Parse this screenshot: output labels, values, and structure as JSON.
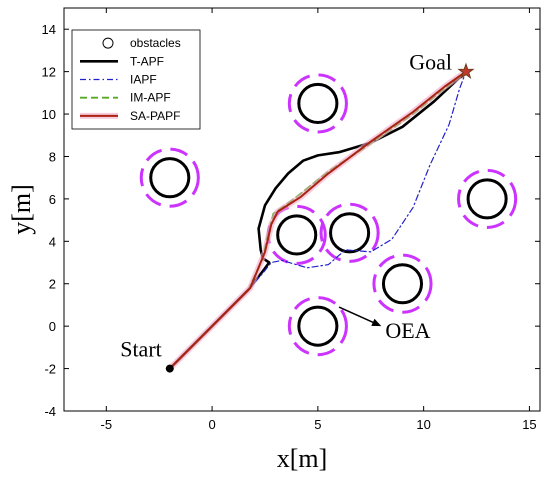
{
  "chart_data": {
    "type": "line",
    "xlabel": "x[m]",
    "ylabel": "y[m]",
    "xlim": [
      -7,
      15.5
    ],
    "ylim": [
      -4,
      15
    ],
    "xticks": [
      -5,
      0,
      5,
      10,
      15
    ],
    "yticks": [
      -4,
      -2,
      0,
      2,
      4,
      6,
      8,
      10,
      12,
      14
    ],
    "grid": false,
    "legend_position": "top-left",
    "start": {
      "label": "Start",
      "x": -2,
      "y": -2
    },
    "goal": {
      "label": "Goal",
      "x": 12,
      "y": 12
    },
    "annotation": {
      "label": "OEA",
      "from": [
        6.0,
        0.9
      ],
      "to": [
        8.0,
        0.0
      ]
    },
    "obstacles": {
      "legend": "obstacles",
      "radius": 0.9,
      "oea_radius": 1.35,
      "oea_color": "#cc33ff",
      "centers": [
        [
          5,
          10.5
        ],
        [
          -2,
          7
        ],
        [
          4,
          4.3
        ],
        [
          6.5,
          4.4
        ],
        [
          9,
          2
        ],
        [
          13,
          6
        ],
        [
          5,
          0
        ]
      ]
    },
    "series": [
      {
        "name": "T-APF",
        "color": "#000000",
        "style": "solid",
        "points": [
          [
            -2,
            -2
          ],
          [
            1.7,
            1.7
          ],
          [
            2.4,
            2.6
          ],
          [
            2.7,
            3.0
          ],
          [
            2.4,
            3.2
          ],
          [
            2.3,
            3.6
          ],
          [
            2.2,
            4.6
          ],
          [
            2.5,
            5.7
          ],
          [
            3.0,
            6.5
          ],
          [
            3.6,
            7.2
          ],
          [
            4.3,
            7.8
          ],
          [
            5.0,
            8.05
          ],
          [
            6.0,
            8.2
          ],
          [
            7.5,
            8.65
          ],
          [
            9.0,
            9.4
          ],
          [
            10.5,
            10.6
          ],
          [
            12,
            12
          ]
        ]
      },
      {
        "name": "IAPF",
        "color": "#2222cc",
        "style": "dashdot",
        "points": [
          [
            -2,
            -2
          ],
          [
            1.7,
            1.7
          ],
          [
            2.4,
            2.5
          ],
          [
            2.8,
            3.0
          ],
          [
            3.3,
            3.1
          ],
          [
            4.5,
            2.75
          ],
          [
            5.5,
            2.9
          ],
          [
            6.3,
            3.6
          ],
          [
            7.5,
            3.5
          ],
          [
            8.5,
            4.1
          ],
          [
            9.5,
            5.6
          ],
          [
            10.3,
            7.6
          ],
          [
            11.2,
            9.5
          ],
          [
            11.7,
            11.2
          ],
          [
            12,
            12
          ]
        ]
      },
      {
        "name": "IM-APF",
        "color": "#55aa22",
        "style": "dashed",
        "points": [
          [
            -2,
            -2
          ],
          [
            1.7,
            1.7
          ],
          [
            2.4,
            3.2
          ],
          [
            2.6,
            4.2
          ],
          [
            2.9,
            5.3
          ],
          [
            4.0,
            6.1
          ],
          [
            5.5,
            7.3
          ],
          [
            7.5,
            8.6
          ],
          [
            9.5,
            10.0
          ],
          [
            11,
            11.2
          ],
          [
            12,
            12
          ]
        ]
      },
      {
        "name": "SA-PAPF",
        "color": "#aa2211",
        "style": "solid",
        "points": [
          [
            -2,
            -2
          ],
          [
            1.8,
            1.8
          ],
          [
            2.5,
            3.5
          ],
          [
            2.8,
            4.8
          ],
          [
            3.1,
            5.4
          ],
          [
            4.2,
            6.1
          ],
          [
            5.5,
            7.2
          ],
          [
            7.5,
            8.7
          ],
          [
            9.5,
            10.1
          ],
          [
            11,
            11.3
          ],
          [
            12,
            12
          ]
        ]
      }
    ]
  }
}
